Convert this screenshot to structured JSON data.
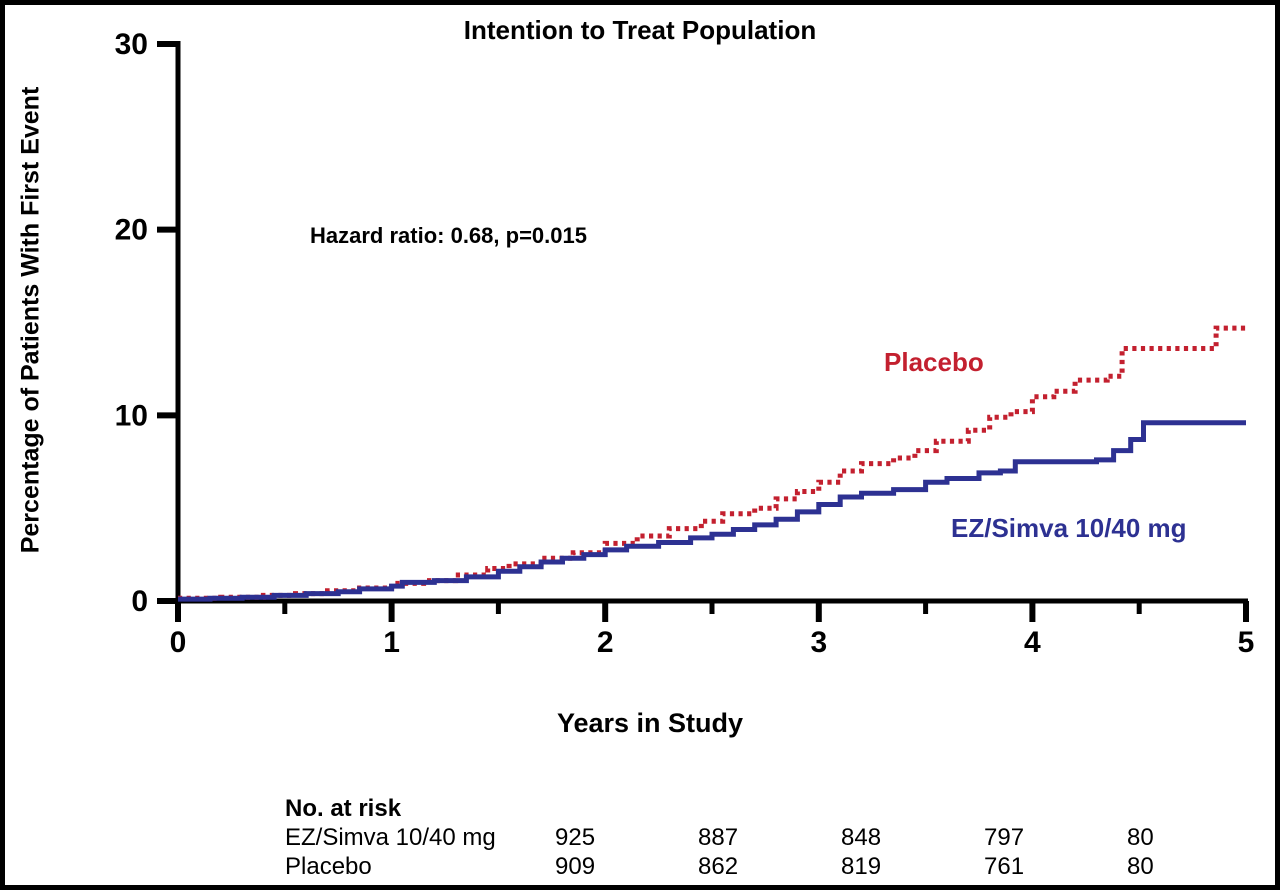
{
  "chart_data": {
    "type": "line",
    "subtype": "kaplan-meier-step",
    "title": "Intention to Treat Population",
    "annotation": "Hazard ratio: 0.68, p=0.015",
    "ylabel": "Percentage of Patients With First Event",
    "xlabel": "Years in Study",
    "xlim": [
      0,
      5
    ],
    "ylim": [
      0,
      30
    ],
    "x_ticks": [
      0,
      1,
      2,
      3,
      4,
      5
    ],
    "x_minor_ticks": [
      0.5,
      1.5,
      2.5,
      3.5,
      4.5
    ],
    "y_ticks": [
      0,
      10,
      20,
      30
    ],
    "grid": false,
    "legend_position": "inline-labels",
    "axis_color": "#000000",
    "series": [
      {
        "name": "Placebo",
        "color": "#C3202F",
        "line_style": "dotted",
        "points": [
          [
            0,
            0.15
          ],
          [
            0.2,
            0.2
          ],
          [
            0.4,
            0.3
          ],
          [
            0.55,
            0.4
          ],
          [
            0.7,
            0.55
          ],
          [
            0.85,
            0.7
          ],
          [
            1.0,
            0.95
          ],
          [
            1.15,
            1.1
          ],
          [
            1.3,
            1.4
          ],
          [
            1.45,
            1.75
          ],
          [
            1.55,
            2.0
          ],
          [
            1.7,
            2.3
          ],
          [
            1.85,
            2.6
          ],
          [
            2.0,
            3.1
          ],
          [
            2.15,
            3.5
          ],
          [
            2.3,
            3.9
          ],
          [
            2.45,
            4.3
          ],
          [
            2.55,
            4.7
          ],
          [
            2.7,
            5.0
          ],
          [
            2.8,
            5.5
          ],
          [
            2.9,
            5.9
          ],
          [
            3.0,
            6.4
          ],
          [
            3.1,
            7.0
          ],
          [
            3.2,
            7.4
          ],
          [
            3.35,
            7.7
          ],
          [
            3.45,
            8.1
          ],
          [
            3.55,
            8.6
          ],
          [
            3.7,
            9.2
          ],
          [
            3.8,
            9.9
          ],
          [
            3.9,
            10.2
          ],
          [
            4.0,
            11.0
          ],
          [
            4.1,
            11.3
          ],
          [
            4.2,
            11.9
          ],
          [
            4.35,
            12.1
          ],
          [
            4.42,
            13.6
          ],
          [
            4.8,
            13.6
          ],
          [
            4.86,
            14.7
          ],
          [
            5.0,
            14.7
          ]
        ]
      },
      {
        "name": "EZ/Simva 10/40 mg",
        "color": "#2D3192",
        "line_style": "solid",
        "points": [
          [
            0,
            0.1
          ],
          [
            0.15,
            0.15
          ],
          [
            0.3,
            0.2
          ],
          [
            0.45,
            0.3
          ],
          [
            0.6,
            0.4
          ],
          [
            0.75,
            0.5
          ],
          [
            0.85,
            0.65
          ],
          [
            1.0,
            0.8
          ],
          [
            1.05,
            1.0
          ],
          [
            1.2,
            1.1
          ],
          [
            1.35,
            1.3
          ],
          [
            1.5,
            1.6
          ],
          [
            1.6,
            1.85
          ],
          [
            1.7,
            2.1
          ],
          [
            1.8,
            2.3
          ],
          [
            1.9,
            2.5
          ],
          [
            2.0,
            2.75
          ],
          [
            2.1,
            2.95
          ],
          [
            2.25,
            3.15
          ],
          [
            2.4,
            3.4
          ],
          [
            2.5,
            3.6
          ],
          [
            2.6,
            3.85
          ],
          [
            2.7,
            4.1
          ],
          [
            2.8,
            4.4
          ],
          [
            2.9,
            4.8
          ],
          [
            3.0,
            5.2
          ],
          [
            3.1,
            5.6
          ],
          [
            3.2,
            5.8
          ],
          [
            3.35,
            6.0
          ],
          [
            3.5,
            6.4
          ],
          [
            3.6,
            6.6
          ],
          [
            3.75,
            6.9
          ],
          [
            3.85,
            7.0
          ],
          [
            3.92,
            7.5
          ],
          [
            4.3,
            7.6
          ],
          [
            4.38,
            8.1
          ],
          [
            4.46,
            8.7
          ],
          [
            4.52,
            9.6
          ],
          [
            5.0,
            9.6
          ]
        ]
      }
    ]
  },
  "risk_table": {
    "header": "No. at risk",
    "rows": [
      {
        "label": "EZ/Simva 10/40 mg",
        "values": [
          "925",
          "887",
          "848",
          "797",
          "80"
        ]
      },
      {
        "label": "Placebo",
        "values": [
          "909",
          "862",
          "819",
          "761",
          "80"
        ]
      }
    ]
  }
}
